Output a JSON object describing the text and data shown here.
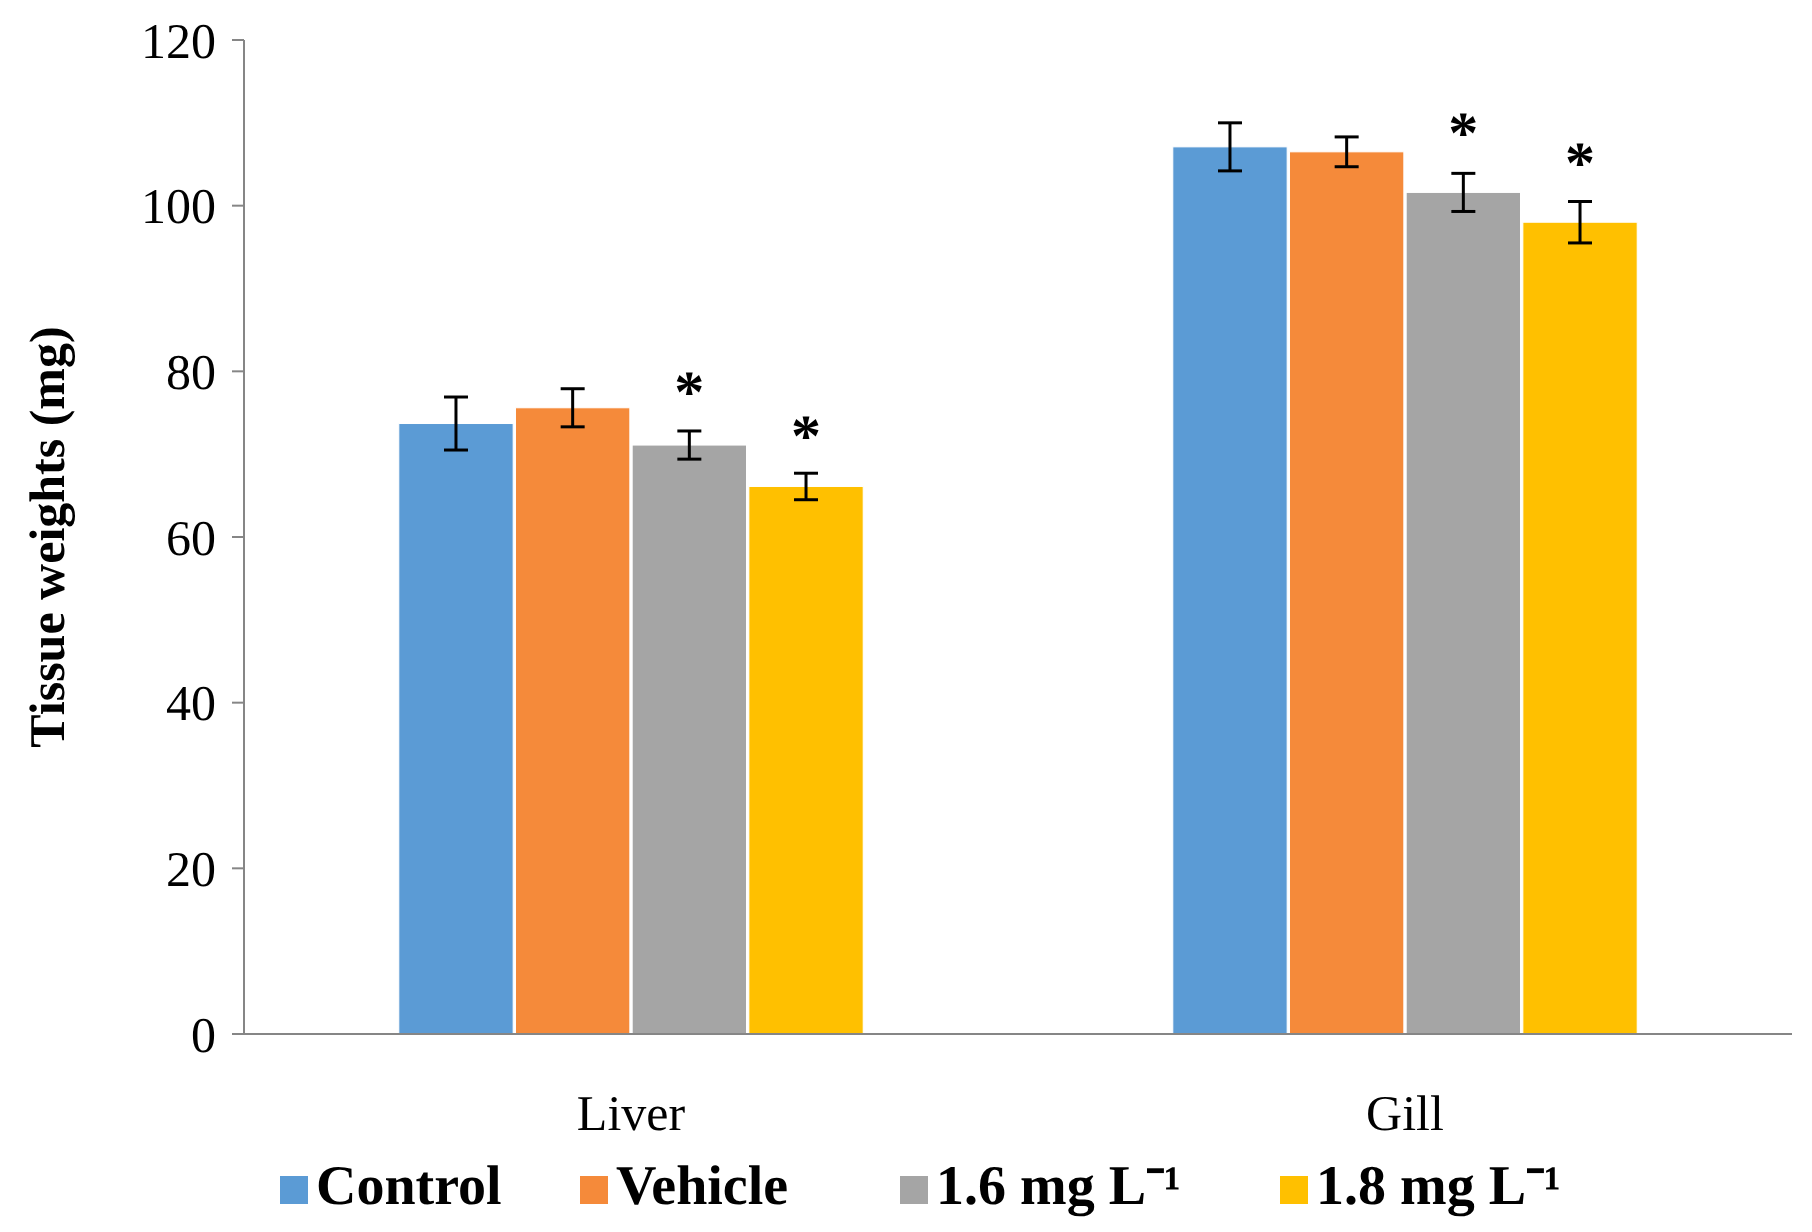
{
  "chart_data": {
    "type": "bar",
    "ylabel": "Tissue weights (mg)",
    "categories": [
      "Liver",
      "Gill"
    ],
    "series": [
      {
        "name": "Control",
        "color": "#5b9bd5",
        "values": [
          73.7,
          107.1
        ],
        "errors": [
          3.2,
          2.9
        ]
      },
      {
        "name": "Vehicle",
        "color": "#f58a3a",
        "values": [
          75.6,
          106.5
        ],
        "errors": [
          2.3,
          1.8
        ]
      },
      {
        "name": "1.6 mg L⁻¹",
        "color": "#a5a5a5",
        "values": [
          71.1,
          101.6
        ],
        "errors": [
          1.7,
          2.3
        ]
      },
      {
        "name": "1.8 mg L⁻¹",
        "color": "#ffc000",
        "values": [
          66.1,
          98
        ],
        "errors": [
          1.6,
          2.5
        ]
      }
    ],
    "annotations": [
      {
        "text": "*",
        "x": "Liver",
        "y": 73.2
      },
      {
        "text": "*",
        "x": "Liver",
        "y": 67.9
      },
      {
        "text": "*",
        "x": "Gill",
        "y": 104.4
      },
      {
        "text": "*",
        "x": "Gill",
        "y": 100.8
      }
    ],
    "ylim": [
      0,
      120
    ],
    "yticks": [
      0,
      20,
      40,
      60,
      80,
      100,
      120
    ],
    "grid": false,
    "legend": "bottom"
  }
}
